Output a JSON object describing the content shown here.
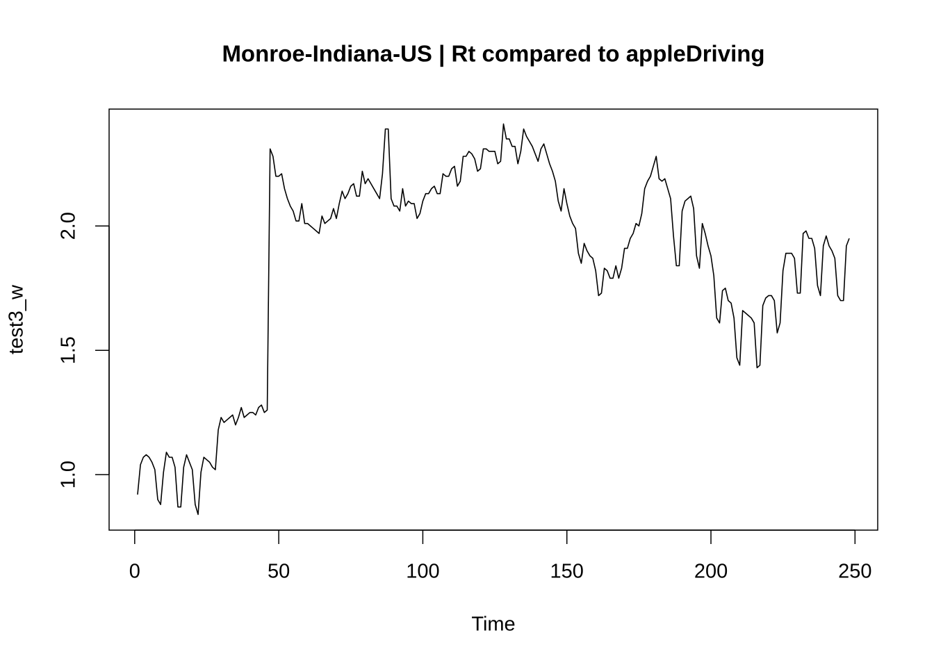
{
  "chart_data": {
    "type": "line",
    "title": "Monroe-Indiana-US | Rt compared to appleDriving",
    "x_label": "Time",
    "y_label": "test3_w",
    "x": [
      1,
      2,
      3,
      4,
      5,
      6,
      7,
      8,
      9,
      10,
      11,
      12,
      13,
      14,
      15,
      16,
      17,
      18,
      19,
      20,
      21,
      22,
      23,
      24,
      25,
      26,
      27,
      28,
      29,
      30,
      31,
      32,
      33,
      34,
      35,
      36,
      37,
      38,
      39,
      40,
      41,
      42,
      43,
      44,
      45,
      46,
      47,
      48,
      49,
      50,
      51,
      52,
      53,
      54,
      55,
      56,
      57,
      58,
      59,
      60,
      61,
      62,
      63,
      64,
      65,
      66,
      67,
      68,
      69,
      70,
      71,
      72,
      73,
      74,
      75,
      76,
      77,
      78,
      79,
      80,
      81,
      82,
      83,
      84,
      85,
      86,
      87,
      88,
      89,
      90,
      91,
      92,
      93,
      94,
      95,
      96,
      97,
      98,
      99,
      100,
      101,
      102,
      103,
      104,
      105,
      106,
      107,
      108,
      109,
      110,
      111,
      112,
      113,
      114,
      115,
      116,
      117,
      118,
      119,
      120,
      121,
      122,
      123,
      124,
      125,
      126,
      127,
      128,
      129,
      130,
      131,
      132,
      133,
      134,
      135,
      136,
      137,
      138,
      139,
      140,
      141,
      142,
      143,
      144,
      145,
      146,
      147,
      148,
      149,
      150,
      151,
      152,
      153,
      154,
      155,
      156,
      157,
      158,
      159,
      160,
      161,
      162,
      163,
      164,
      165,
      166,
      167,
      168,
      169,
      170,
      171,
      172,
      173,
      174,
      175,
      176,
      177,
      178,
      179,
      180,
      181,
      182,
      183,
      184,
      185,
      186,
      187,
      188,
      189,
      190,
      191,
      192,
      193,
      194,
      195,
      196,
      197,
      198,
      199,
      200,
      201,
      202,
      203,
      204,
      205,
      206,
      207,
      208,
      209,
      210,
      211,
      212,
      213,
      214,
      215,
      216,
      217,
      218,
      219,
      220,
      221,
      222,
      223,
      224,
      225,
      226,
      227,
      228,
      229,
      230,
      231,
      232,
      233,
      234,
      235,
      236,
      237,
      238,
      239,
      240,
      241,
      242,
      243,
      244,
      245,
      246,
      247,
      248
    ],
    "series": [
      {
        "name": "test3_w",
        "color": "#000000",
        "values": [
          0.92,
          1.04,
          1.07,
          1.08,
          1.07,
          1.05,
          1.02,
          0.9,
          0.88,
          1.01,
          1.09,
          1.07,
          1.07,
          1.03,
          0.87,
          0.87,
          1.03,
          1.08,
          1.05,
          1.02,
          0.88,
          0.84,
          1.01,
          1.07,
          1.06,
          1.05,
          1.03,
          1.02,
          1.18,
          1.23,
          1.21,
          1.22,
          1.23,
          1.24,
          1.2,
          1.23,
          1.27,
          1.23,
          1.24,
          1.25,
          1.25,
          1.24,
          1.27,
          1.28,
          1.25,
          1.26,
          2.31,
          2.28,
          2.2,
          2.2,
          2.21,
          2.15,
          2.11,
          2.08,
          2.06,
          2.02,
          2.02,
          2.09,
          2.01,
          2.01,
          2.0,
          1.99,
          1.98,
          1.97,
          2.04,
          2.01,
          2.02,
          2.03,
          2.07,
          2.03,
          2.09,
          2.14,
          2.11,
          2.13,
          2.16,
          2.17,
          2.12,
          2.12,
          2.22,
          2.17,
          2.19,
          2.17,
          2.15,
          2.13,
          2.11,
          2.21,
          2.39,
          2.39,
          2.11,
          2.08,
          2.08,
          2.06,
          2.15,
          2.08,
          2.1,
          2.09,
          2.09,
          2.03,
          2.05,
          2.1,
          2.13,
          2.13,
          2.15,
          2.16,
          2.13,
          2.13,
          2.21,
          2.2,
          2.2,
          2.23,
          2.24,
          2.16,
          2.18,
          2.28,
          2.28,
          2.3,
          2.29,
          2.27,
          2.22,
          2.23,
          2.31,
          2.31,
          2.3,
          2.3,
          2.3,
          2.25,
          2.26,
          2.41,
          2.35,
          2.35,
          2.32,
          2.32,
          2.25,
          2.3,
          2.39,
          2.36,
          2.34,
          2.32,
          2.29,
          2.26,
          2.31,
          2.33,
          2.29,
          2.25,
          2.22,
          2.18,
          2.1,
          2.06,
          2.15,
          2.09,
          2.04,
          2.01,
          1.99,
          1.89,
          1.85,
          1.93,
          1.9,
          1.88,
          1.87,
          1.82,
          1.72,
          1.73,
          1.83,
          1.82,
          1.79,
          1.79,
          1.84,
          1.79,
          1.83,
          1.91,
          1.91,
          1.95,
          1.97,
          2.01,
          2.0,
          2.05,
          2.15,
          2.18,
          2.2,
          2.24,
          2.28,
          2.19,
          2.18,
          2.19,
          2.15,
          2.11,
          1.96,
          1.84,
          1.84,
          2.06,
          2.1,
          2.11,
          2.12,
          2.07,
          1.88,
          1.83,
          2.01,
          1.97,
          1.92,
          1.88,
          1.8,
          1.63,
          1.61,
          1.74,
          1.75,
          1.7,
          1.69,
          1.63,
          1.47,
          1.44,
          1.66,
          1.65,
          1.64,
          1.63,
          1.61,
          1.43,
          1.44,
          1.68,
          1.71,
          1.72,
          1.72,
          1.7,
          1.57,
          1.61,
          1.82,
          1.89,
          1.89,
          1.89,
          1.87,
          1.73,
          1.73,
          1.97,
          1.98,
          1.95,
          1.95,
          1.91,
          1.76,
          1.72,
          1.92,
          1.96,
          1.92,
          1.9,
          1.87,
          1.72,
          1.7,
          1.7,
          1.92,
          1.95
        ]
      }
    ],
    "xlim": [
      -8.88,
      257.88
    ],
    "ylim": [
      0.777,
      2.47
    ],
    "xticks": [
      0,
      50,
      100,
      150,
      200,
      250
    ],
    "yticks": [
      {
        "value": 1,
        "label": "1.0"
      },
      1.5,
      {
        "value": 2,
        "label": "2.0"
      }
    ]
  }
}
